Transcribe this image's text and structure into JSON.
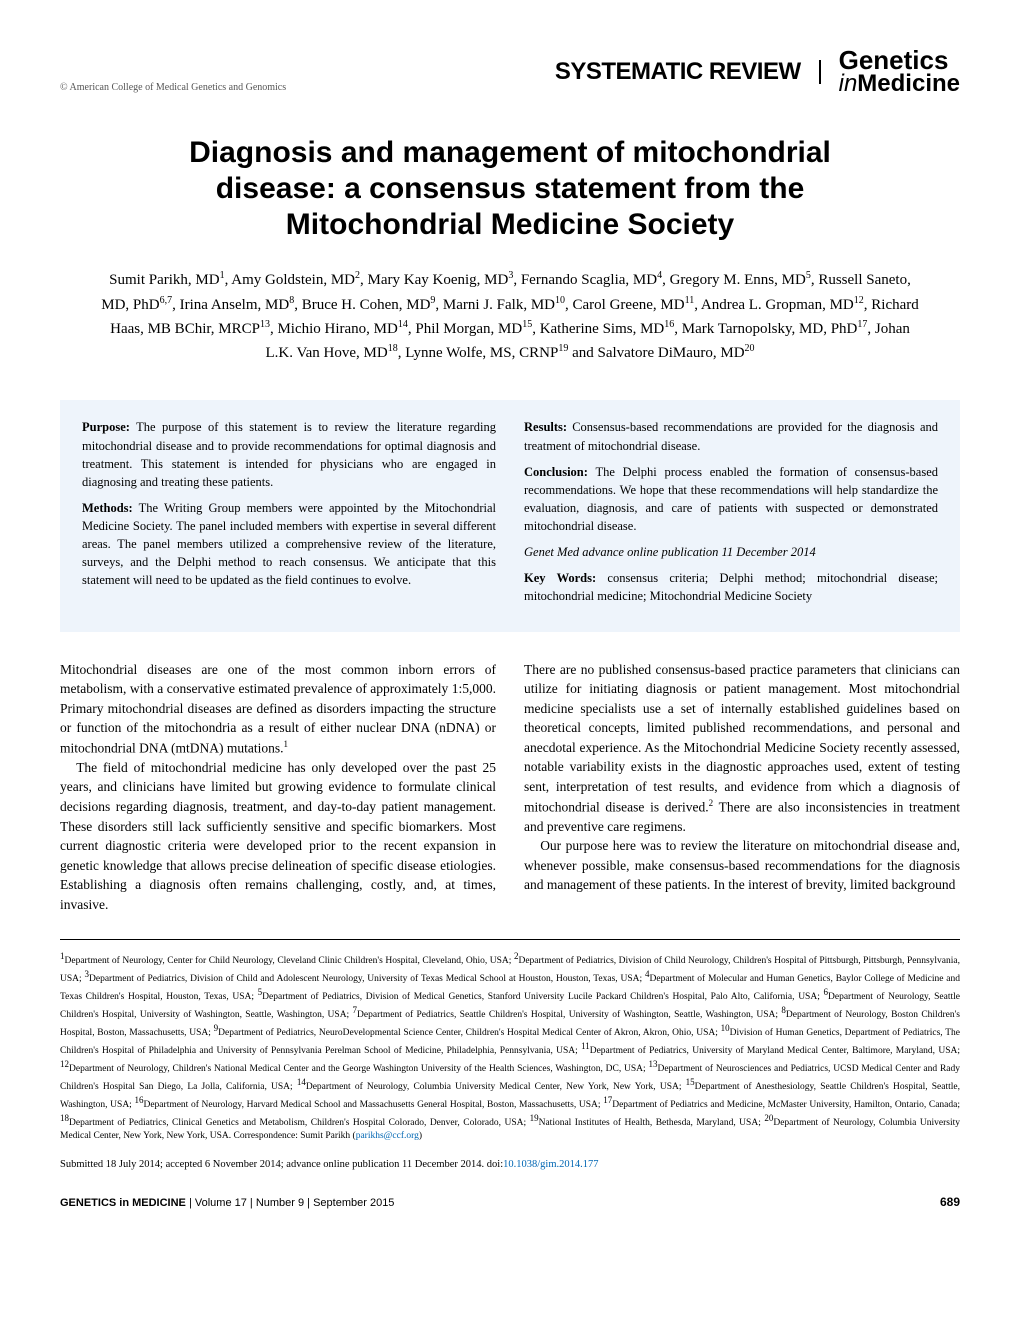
{
  "header": {
    "copyright": "© American College of Medical Genetics and Genomics",
    "section_type": "SYSTEMATIC REVIEW",
    "journal_line1": "Genetics",
    "journal_line2_prefix": "in",
    "journal_line2_bold": "Medicine"
  },
  "title": "Diagnosis and management of mitochondrial disease: a consensus statement from the Mitochondrial Medicine Society",
  "authors_html": "Sumit Parikh, MD<sup>1</sup>, Amy Goldstein, MD<sup>2</sup>, Mary Kay Koenig, MD<sup>3</sup>, Fernando Scaglia, MD<sup>4</sup>, Gregory M. Enns, MD<sup>5</sup>, Russell Saneto, MD, PhD<sup>6,7</sup>, Irina Anselm, MD<sup>8</sup>, Bruce H. Cohen, MD<sup>9</sup>, Marni J. Falk, MD<sup>10</sup>, Carol Greene, MD<sup>11</sup>, Andrea L. Gropman, MD<sup>12</sup>, Richard Haas, MB BChir, MRCP<sup>13</sup>, Michio Hirano, MD<sup>14</sup>, Phil Morgan, MD<sup>15</sup>, Katherine Sims, MD<sup>16</sup>, Mark Tarnopolsky, MD, PhD<sup>17</sup>, Johan L.K. Van Hove, MD<sup>18</sup>, Lynne Wolfe, MS, CRNP<sup>19</sup> and Salvatore DiMauro, MD<sup>20</sup>",
  "abstract": {
    "purpose_label": "Purpose:",
    "purpose": " The purpose of this statement is to review the literature regarding mitochondrial disease and to provide recommendations for optimal diagnosis and treatment. This statement is intended for physicians who are engaged in diagnosing and treating these patients.",
    "methods_label": "Methods:",
    "methods": " The Writing Group members were appointed by the Mitochondrial Medicine Society. The panel included members with expertise in several different areas. The panel members utilized a comprehensive review of the literature, surveys, and the Delphi method to reach consensus. We anticipate that this statement will need to be updated as the field continues to evolve.",
    "results_label": "Results:",
    "results": " Consensus-based recommendations are provided for the diagnosis and treatment of mitochondrial disease.",
    "conclusion_label": "Conclusion:",
    "conclusion": " The Delphi process enabled the formation of consensus-based recommendations. We hope that these recommendations will help standardize the evaluation, diagnosis, and care of patients with suspected or demonstrated mitochondrial disease.",
    "pubinfo": "Genet Med advance online publication 11 December 2014",
    "keywords_label": "Key Words:",
    "keywords": " consensus criteria; Delphi method; mitochondrial disease; mitochondrial medicine; Mitochondrial Medicine Society"
  },
  "body": {
    "left": {
      "p1": "Mitochondrial diseases are one of the most common inborn errors of metabolism, with a conservative estimated prevalence of approximately 1:5,000. Primary mitochondrial diseases are defined as disorders impacting the structure or function of the mitochondria as a result of either nuclear DNA (nDNA) or mitochondrial DNA (mtDNA) mutations.",
      "p1_sup": "1",
      "p2": "The field of mitochondrial medicine has only developed over the past 25 years, and clinicians have limited but growing evidence to formulate clinical decisions regarding diagnosis, treatment, and day-to-day patient management. These disorders still lack sufficiently sensitive and specific biomarkers. Most current diagnostic criteria were developed prior to the recent expansion in genetic knowledge that allows precise delineation of specific disease etiologies. Establishing a diagnosis often remains challenging, costly, and, at times, invasive."
    },
    "right": {
      "p1_a": "There are no published consensus-based practice parameters that clinicians can utilize for initiating diagnosis or patient management. Most mitochondrial medicine specialists use a set of internally established guidelines based on theoretical concepts, limited published recommendations, and personal and anecdotal experience. As the Mitochondrial Medicine Society recently assessed, notable variability exists in the diagnostic approaches used, extent of testing sent, interpretation of test results, and evidence from which a diagnosis of mitochondrial disease is derived.",
      "p1_sup": "2",
      "p1_b": " There are also inconsistencies in treatment and preventive care regimens.",
      "p2": "Our purpose here was to review the literature on mitochondrial disease and, whenever possible, make consensus-based recommendations for the diagnosis and management of these patients. In the interest of brevity, limited background"
    }
  },
  "affiliations_html": "<sup>1</sup>Department of Neurology, Center for Child Neurology, Cleveland Clinic Children's Hospital, Cleveland, Ohio, USA; <sup>2</sup>Department of Pediatrics, Division of Child Neurology, Children's Hospital of Pittsburgh, Pittsburgh, Pennsylvania, USA; <sup>3</sup>Department of Pediatrics, Division of Child and Adolescent Neurology, University of Texas Medical School at Houston, Houston, Texas, USA; <sup>4</sup>Department of Molecular and Human Genetics, Baylor College of Medicine and Texas Children's Hospital, Houston, Texas, USA; <sup>5</sup>Department of Pediatrics, Division of Medical Genetics, Stanford University Lucile Packard Children's Hospital, Palo Alto, California, USA; <sup>6</sup>Department of Neurology, Seattle Children's Hospital, University of Washington, Seattle, Washington, USA; <sup>7</sup>Department of Pediatrics, Seattle Children's Hospital, University of Washington, Seattle, Washington, USA; <sup>8</sup>Department of Neurology, Boston Children's Hospital, Boston, Massachusetts, USA; <sup>9</sup>Department of Pediatrics, NeuroDevelopmental Science Center, Children's Hospital Medical Center of Akron, Akron, Ohio, USA; <sup>10</sup>Division of Human Genetics, Department of Pediatrics, The Children's Hospital of Philadelphia and University of Pennsylvania Perelman School of Medicine, Philadelphia, Pennsylvania, USA; <sup>11</sup>Department of Pediatrics, University of Maryland Medical Center, Baltimore, Maryland, USA; <sup>12</sup>Department of Neurology, Children's National Medical Center and the George Washington University of the Health Sciences, Washington, DC, USA; <sup>13</sup>Department of Neurosciences and Pediatrics, UCSD Medical Center and Rady Children's Hospital San Diego, La Jolla, California, USA; <sup>14</sup>Department of Neurology, Columbia University Medical Center, New York, New York, USA; <sup>15</sup>Department of Anesthesiology, Seattle Children's Hospital, Seattle, Washington, USA; <sup>16</sup>Department of Neurology, Harvard Medical School and Massachusetts General Hospital, Boston, Massachusetts, USA; <sup>17</sup>Department of Pediatrics and Medicine, McMaster University, Hamilton, Ontario, Canada; <sup>18</sup>Department of Pediatrics, Clinical Genetics and Metabolism, Children's Hospital Colorado, Denver, Colorado, USA; <sup>19</sup>National Institutes of Health, Bethesda, Maryland, USA; <sup>20</sup>Department of Neurology, Columbia University Medical Center, New York, New York, USA. Correspondence: Sumit Parikh (<a href=\"#\">parikhs@ccf.org</a>)",
  "submitted": {
    "text": "Submitted 18 July 2014; accepted 6 November 2014; advance online publication 11 December 2014. doi:",
    "doi": "10.1038/gim.2014.177"
  },
  "footer": {
    "journal_bold": "GENETICS in MEDICINE",
    "journal_rest": " | Volume 17 | Number 9 | September 2015",
    "page": "689"
  },
  "colors": {
    "abstract_bg": "#eef4fb",
    "link": "#0066b3"
  }
}
